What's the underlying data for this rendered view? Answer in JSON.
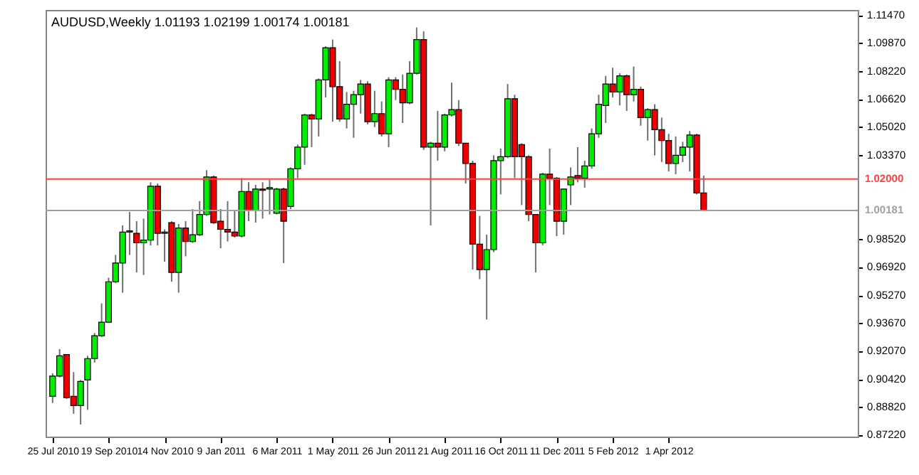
{
  "chart_data": {
    "type": "candlestick",
    "title": "AUDUSD,Weekly  1.01193 1.02199 1.00174 1.00181",
    "x": [
      "2010-07-25",
      "2010-08-01",
      "2010-08-08",
      "2010-08-15",
      "2010-08-22",
      "2010-08-29",
      "2010-09-05",
      "2010-09-12",
      "2010-09-19",
      "2010-09-26",
      "2010-10-03",
      "2010-10-10",
      "2010-10-17",
      "2010-10-24",
      "2010-10-31",
      "2010-11-07",
      "2010-11-14",
      "2010-11-21",
      "2010-11-28",
      "2010-12-05",
      "2010-12-12",
      "2010-12-19",
      "2010-12-26",
      "2011-01-02",
      "2011-01-09",
      "2011-01-16",
      "2011-01-23",
      "2011-01-30",
      "2011-02-06",
      "2011-02-13",
      "2011-02-20",
      "2011-02-27",
      "2011-03-06",
      "2011-03-13",
      "2011-03-20",
      "2011-03-27",
      "2011-04-03",
      "2011-04-10",
      "2011-04-17",
      "2011-04-24",
      "2011-05-01",
      "2011-05-08",
      "2011-05-15",
      "2011-05-22",
      "2011-05-29",
      "2011-06-05",
      "2011-06-12",
      "2011-06-19",
      "2011-06-26",
      "2011-07-03",
      "2011-07-10",
      "2011-07-17",
      "2011-07-24",
      "2011-07-31",
      "2011-08-07",
      "2011-08-14",
      "2011-08-21",
      "2011-08-28",
      "2011-09-04",
      "2011-09-11",
      "2011-09-18",
      "2011-09-25",
      "2011-10-02",
      "2011-10-09",
      "2011-10-16",
      "2011-10-23",
      "2011-10-30",
      "2011-11-06",
      "2011-11-13",
      "2011-11-20",
      "2011-11-27",
      "2011-12-04",
      "2011-12-11",
      "2011-12-18",
      "2011-12-25",
      "2012-01-01",
      "2012-01-08",
      "2012-01-15",
      "2012-01-22",
      "2012-01-29",
      "2012-02-05",
      "2012-02-12",
      "2012-02-19",
      "2012-02-26",
      "2012-03-04",
      "2012-03-11",
      "2012-03-18",
      "2012-03-25",
      "2012-04-01",
      "2012-04-08",
      "2012-04-15",
      "2012-04-22",
      "2012-04-29",
      "2012-05-06"
    ],
    "ohlc": [
      [
        0.8944,
        0.9077,
        0.8905,
        0.9061
      ],
      [
        0.9061,
        0.9217,
        0.9053,
        0.9178
      ],
      [
        0.9185,
        0.9185,
        0.8929,
        0.8936
      ],
      [
        0.8944,
        0.9084,
        0.8843,
        0.889
      ],
      [
        0.889,
        0.9038,
        0.8781,
        0.903
      ],
      [
        0.9038,
        0.9178,
        0.8866,
        0.9162
      ],
      [
        0.9162,
        0.931,
        0.9139,
        0.9294
      ],
      [
        0.9294,
        0.9481,
        0.9287,
        0.9372
      ],
      [
        0.9372,
        0.9629,
        0.9372,
        0.9606
      ],
      [
        0.9606,
        0.9761,
        0.9598,
        0.9714
      ],
      [
        0.9714,
        0.9932,
        0.9543,
        0.9893
      ],
      [
        0.9893,
        1.001,
        0.9761,
        0.99
      ],
      [
        0.9886,
        0.9956,
        0.966,
        0.9831
      ],
      [
        0.9831,
        0.9971,
        0.9645,
        0.9847
      ],
      [
        0.9847,
        1.0181,
        0.9816,
        1.0158
      ],
      [
        1.0158,
        1.0174,
        0.9816,
        0.9886
      ],
      [
        0.9886,
        0.9909,
        0.9722,
        0.9893
      ],
      [
        0.9948,
        0.9956,
        0.9606,
        0.966
      ],
      [
        0.966,
        0.994,
        0.9543,
        0.9917
      ],
      [
        0.9917,
        0.9956,
        0.9753,
        0.9839
      ],
      [
        0.9839,
        1.0026,
        0.9831,
        0.9878
      ],
      [
        0.9878,
        1.0072,
        0.987,
        0.9995
      ],
      [
        0.9995,
        1.0251,
        0.9987,
        1.0212
      ],
      [
        1.0212,
        1.022,
        0.994,
        0.9948
      ],
      [
        0.9956,
        1.0026,
        0.98,
        0.9909
      ],
      [
        0.9909,
        1.0072,
        0.9839,
        0.9893
      ],
      [
        0.9893,
        1.0018,
        0.9862,
        0.987
      ],
      [
        0.987,
        1.0205,
        0.9862,
        1.0127
      ],
      [
        1.0127,
        1.0181,
        0.9956,
        1.0018
      ],
      [
        1.0018,
        1.0166,
        0.9948,
        1.0142
      ],
      [
        1.0142,
        1.0181,
        0.9971,
        1.0135
      ],
      [
        1.0142,
        1.0197,
        0.9995,
        1.015
      ],
      [
        1.0002,
        1.015,
        0.9995,
        1.0142
      ],
      [
        1.0142,
        1.015,
        0.9714,
        0.9956
      ],
      [
        1.0041,
        1.0267,
        1.0026,
        1.0259
      ],
      [
        1.0259,
        1.0399,
        1.0205,
        1.0384
      ],
      [
        1.0384,
        1.0578,
        1.0282,
        1.057
      ],
      [
        1.057,
        1.0578,
        1.0384,
        1.0547
      ],
      [
        1.0547,
        1.0781,
        1.0446,
        1.0773
      ],
      [
        1.0773,
        1.0967,
        1.0671,
        1.0959
      ],
      [
        1.0959,
        1.1006,
        1.0531,
        1.0734
      ],
      [
        1.0734,
        1.0881,
        1.0531,
        1.0547
      ],
      [
        1.0547,
        1.0703,
        1.0492,
        1.0632
      ],
      [
        1.0632,
        1.071,
        1.0438,
        1.0687
      ],
      [
        1.0687,
        1.0773,
        1.0578,
        1.0749
      ],
      [
        1.0749,
        1.0765,
        1.0516,
        1.0531
      ],
      [
        1.0531,
        1.071,
        1.05,
        1.0578
      ],
      [
        1.0578,
        1.0648,
        1.0446,
        1.0461
      ],
      [
        1.0461,
        1.0788,
        1.0384,
        1.0773
      ],
      [
        1.0773,
        1.0788,
        1.0656,
        1.0718
      ],
      [
        1.0718,
        1.0804,
        1.0524,
        1.064
      ],
      [
        1.064,
        1.0881,
        1.0632,
        1.0811
      ],
      [
        1.0811,
        1.1076,
        1.0804,
        1.1006
      ],
      [
        1.1006,
        1.1053,
        1.0368,
        1.0384
      ],
      [
        1.0384,
        1.0415,
        0.9932,
        1.0407
      ],
      [
        1.0407,
        1.0594,
        1.0306,
        1.0384
      ],
      [
        1.0384,
        1.0578,
        1.036,
        1.057
      ],
      [
        1.057,
        1.0757,
        1.0562,
        1.0601
      ],
      [
        1.0601,
        1.0656,
        1.0391,
        1.0407
      ],
      [
        1.0407,
        1.0407,
        1.0174,
        1.029
      ],
      [
        1.029,
        1.0306,
        0.9676,
        0.9823
      ],
      [
        0.9823,
        0.9987,
        0.9621,
        0.9676
      ],
      [
        0.9676,
        0.9878,
        0.9388,
        0.9792
      ],
      [
        0.9792,
        1.0337,
        0.9777,
        1.0306
      ],
      [
        1.0306,
        1.0376,
        1.0111,
        1.0329
      ],
      [
        1.0329,
        1.0749,
        1.0321,
        1.0664
      ],
      [
        1.0664,
        1.0687,
        1.0205,
        1.0329
      ],
      [
        1.0399,
        1.0407,
        1.0049,
        1.0329
      ],
      [
        1.0329,
        1.0337,
        0.9956,
        0.9995
      ],
      [
        0.9995,
        0.9995,
        0.966,
        0.9831
      ],
      [
        0.9831,
        1.0236,
        0.9816,
        1.0228
      ],
      [
        1.0228,
        1.0376,
        1.0049,
        1.0205
      ],
      [
        1.0205,
        1.0212,
        0.987,
        0.9956
      ],
      [
        0.9956,
        1.0142,
        0.9878,
        1.0142
      ],
      [
        1.0166,
        1.0267,
        1.0049,
        1.0212
      ],
      [
        1.022,
        1.0384,
        1.0181,
        1.0205
      ],
      [
        1.0205,
        1.0306,
        1.015,
        1.0275
      ],
      [
        1.0275,
        1.0492,
        1.0259,
        1.0461
      ],
      [
        1.0461,
        1.0687,
        1.0438,
        1.0632
      ],
      [
        1.0625,
        1.0796,
        1.0524,
        1.0749
      ],
      [
        1.0749,
        1.0843,
        1.0671,
        1.0703
      ],
      [
        1.0703,
        1.0811,
        1.0625,
        1.0796
      ],
      [
        1.0796,
        1.0804,
        1.0594,
        1.0687
      ],
      [
        1.0687,
        1.085,
        1.0648,
        1.0718
      ],
      [
        1.0718,
        1.0734,
        1.0508,
        1.0555
      ],
      [
        1.0555,
        1.0609,
        1.0422,
        1.0601
      ],
      [
        1.0601,
        1.0632,
        1.0337,
        1.0485
      ],
      [
        1.0485,
        1.0555,
        1.0298,
        1.0422
      ],
      [
        1.0422,
        1.0461,
        1.0244,
        1.029
      ],
      [
        1.029,
        1.0446,
        1.0228,
        1.0337
      ],
      [
        1.0337,
        1.0415,
        1.0298,
        1.0384
      ],
      [
        1.0384,
        1.0477,
        1.0244,
        1.0454
      ],
      [
        1.0454,
        1.0461,
        1.0111,
        1.0119
      ],
      [
        1.01193,
        1.02199,
        1.00174,
        1.00181
      ]
    ],
    "xlim": [
      "2010-07-18",
      "2012-10-07"
    ],
    "xticks": [
      {
        "value": "2010-07-25",
        "label": "25 Jul 2010"
      },
      {
        "value": "2010-09-19",
        "label": "19 Sep 2010"
      },
      {
        "value": "2010-11-14",
        "label": "14 Nov 2010"
      },
      {
        "value": "2011-01-09",
        "label": "9 Jan 2011"
      },
      {
        "value": "2011-03-06",
        "label": "6 Mar 2011"
      },
      {
        "value": "2011-05-01",
        "label": "1 May 2011"
      },
      {
        "value": "2011-06-26",
        "label": "26 Jun 2011"
      },
      {
        "value": "2011-08-21",
        "label": "21 Aug 2011"
      },
      {
        "value": "2011-10-16",
        "label": "16 Oct 2011"
      },
      {
        "value": "2011-12-11",
        "label": "11 Dec 2011"
      },
      {
        "value": "2012-02-05",
        "label": "5 Feb 2012"
      },
      {
        "value": "2012-04-01",
        "label": "1 Apr 2012"
      }
    ],
    "ylim": [
      0.8711,
      1.1177
    ],
    "yticks": [
      {
        "value": 1.1147,
        "label": "1.11470"
      },
      {
        "value": 1.0987,
        "label": "1.09870"
      },
      {
        "value": 1.0822,
        "label": "1.08220"
      },
      {
        "value": 1.0662,
        "label": "1.06620"
      },
      {
        "value": 1.0502,
        "label": "1.05020"
      },
      {
        "value": 1.0337,
        "label": "1.03370"
      },
      {
        "value": 0.9852,
        "label": "0.98520"
      },
      {
        "value": 0.9692,
        "label": "0.96920"
      },
      {
        "value": 0.9527,
        "label": "0.95270"
      },
      {
        "value": 0.9367,
        "label": "0.93670"
      },
      {
        "value": 0.9207,
        "label": "0.92070"
      },
      {
        "value": 0.9042,
        "label": "0.90420"
      },
      {
        "value": 0.8882,
        "label": "0.88820"
      },
      {
        "value": 0.8722,
        "label": "0.87220"
      }
    ],
    "ref_lines": [
      {
        "axis": "y",
        "value": 1.02,
        "label": "1.02000",
        "color": "#ff4040"
      },
      {
        "axis": "y",
        "value": 1.00181,
        "label": "1.00181",
        "color": "#a0a0a0"
      }
    ]
  }
}
